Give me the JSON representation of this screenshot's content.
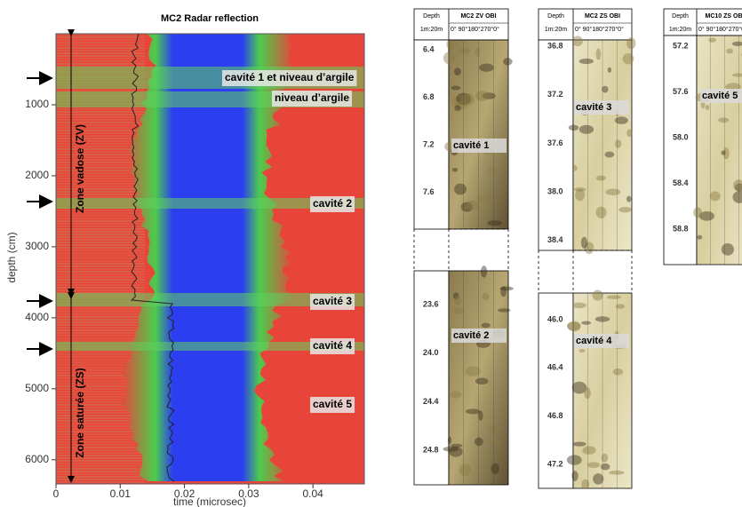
{
  "radar": {
    "title": "MC2 Radar reflection",
    "x_label": "time (microsec)",
    "y_label": "depth (cm)",
    "xlim": [
      0,
      0.048
    ],
    "ylim": [
      0,
      6340
    ],
    "xticks": [
      0,
      0.01,
      0.02,
      0.03,
      0.04
    ],
    "yticks": [
      1000,
      2000,
      3000,
      4000,
      5000,
      6000
    ],
    "zones": [
      "Zone vadose (ZV)",
      "Zone saturée (ZS)"
    ],
    "annotations": [
      "cavité 1 et niveau d’argile",
      "niveau d’argile",
      "cavité 2",
      "cavité 3",
      "cavité 4",
      "cavité 5"
    ]
  },
  "logs": [
    {
      "depth_header": "Depth",
      "scale": "1m:20m",
      "title": "MC2 ZV OBI",
      "azimuth": "0° 90°180°270°0°",
      "sections": [
        [
          "6.4",
          "6.8",
          "7.2",
          "7.6"
        ],
        [
          "23.6",
          "24.0",
          "24.4",
          "24.8"
        ]
      ],
      "labels": [
        "cavité  1",
        "cavité  2"
      ]
    },
    {
      "depth_header": "Depth",
      "scale": "1m:20m",
      "title": "MC2 ZS OBI",
      "azimuth": "0° 90°180°270°0°",
      "sections": [
        [
          "36.8",
          "37.2",
          "37.6",
          "38.0",
          "38.4"
        ],
        [
          "46.0",
          "46.4",
          "46.8",
          "47.2"
        ]
      ],
      "labels": [
        "cavité  3",
        "cavité  4"
      ]
    },
    {
      "depth_header": "Depth",
      "scale": "1m:20m",
      "title": "MC10 ZS OBI",
      "azimuth": "0° 90°180°270°0°",
      "sections": [
        [
          "57.2",
          "57.6",
          "58.0",
          "58.4",
          "58.8"
        ]
      ],
      "labels": [
        "cavité  5"
      ]
    }
  ]
}
